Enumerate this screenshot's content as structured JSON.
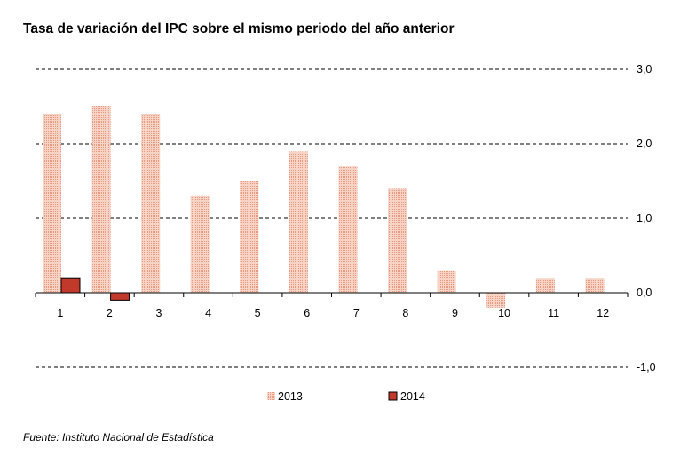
{
  "chart_data": {
    "type": "bar",
    "title": "Tasa de variación del IPC sobre el mismo periodo del año anterior",
    "source": "Fuente: Instituto Nacional de Estadística",
    "categories": [
      "1",
      "2",
      "3",
      "4",
      "5",
      "6",
      "7",
      "8",
      "9",
      "10",
      "11",
      "12"
    ],
    "series": [
      {
        "name": "2013",
        "color": "#f2b9a6",
        "values": [
          2.4,
          2.5,
          2.4,
          1.3,
          1.5,
          1.9,
          1.7,
          1.4,
          0.3,
          -0.2,
          0.2,
          0.2
        ]
      },
      {
        "name": "2014",
        "color": "#c0392b",
        "values": [
          0.2,
          -0.1,
          null,
          null,
          null,
          null,
          null,
          null,
          null,
          null,
          null,
          null
        ]
      }
    ],
    "y_ticks": [
      "3,0",
      "2,0",
      "1,0",
      "0,0",
      "-1,0"
    ],
    "ylim": [
      -1,
      3
    ],
    "y_axis_side": "right",
    "grid": "dashed horizontal at 1,0 steps",
    "legend": "bottom-center"
  }
}
